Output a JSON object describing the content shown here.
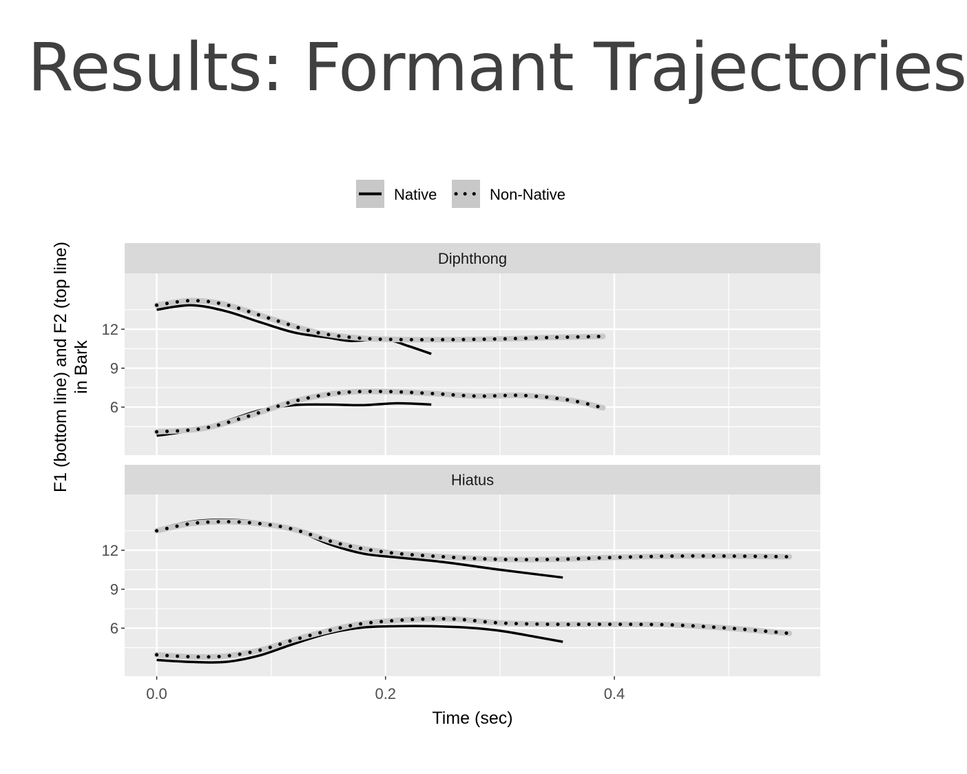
{
  "slide": {
    "title": "Results: Formant Trajectories"
  },
  "legend": [
    {
      "label": "Native",
      "style": "solid"
    },
    {
      "label": "Non-Native",
      "style": "dotted"
    }
  ],
  "chart_data": {
    "type": "line",
    "xlabel": "Time (sec)",
    "ylabel_lines": [
      "F1 (bottom line) and F2 (top line)",
      "in Bark"
    ],
    "xlim": [
      -0.028,
      0.58
    ],
    "ylim": [
      2.3,
      16.3
    ],
    "xticks": [
      0.0,
      0.2,
      0.4
    ],
    "xtick_labels": [
      "0.0",
      "0.2",
      "0.4"
    ],
    "yticks": [
      6,
      9,
      12
    ],
    "ytick_labels": [
      "6",
      "9",
      "12"
    ],
    "grid": true,
    "legend_position": "top",
    "colors": {
      "line": "#000000",
      "panel_bg": "#ebebeb",
      "strip_bg": "#d9d9d9",
      "grid": "#ffffff",
      "ribbon": "#c8c8c8",
      "axis_text": "#4d4d4d"
    },
    "panels": [
      {
        "name": "Diphthong",
        "series": [
          {
            "name": "Native",
            "formant": "F2",
            "style": "solid",
            "x": [
              0.0,
              0.03,
              0.06,
              0.09,
              0.12,
              0.15,
              0.17,
              0.2,
              0.22,
              0.24
            ],
            "y": [
              13.5,
              13.85,
              13.4,
              12.55,
              11.75,
              11.35,
              11.1,
              11.2,
              10.7,
              10.1
            ]
          },
          {
            "name": "Non-Native",
            "formant": "F2",
            "style": "dotted",
            "x": [
              0.0,
              0.03,
              0.06,
              0.1,
              0.14,
              0.18,
              0.22,
              0.26,
              0.3,
              0.34,
              0.39
            ],
            "y": [
              13.85,
              14.2,
              13.9,
              12.8,
              11.75,
              11.3,
              11.2,
              11.2,
              11.25,
              11.35,
              11.45
            ]
          },
          {
            "name": "Native",
            "formant": "F1",
            "style": "solid",
            "x": [
              0.0,
              0.03,
              0.06,
              0.09,
              0.12,
              0.15,
              0.18,
              0.21,
              0.24
            ],
            "y": [
              3.8,
              4.2,
              4.9,
              5.75,
              6.15,
              6.2,
              6.15,
              6.3,
              6.2
            ]
          },
          {
            "name": "Non-Native",
            "formant": "F1",
            "style": "dotted",
            "x": [
              0.0,
              0.04,
              0.08,
              0.12,
              0.16,
              0.2,
              0.24,
              0.28,
              0.32,
              0.36,
              0.39
            ],
            "y": [
              4.1,
              4.35,
              5.3,
              6.45,
              7.1,
              7.2,
              7.05,
              6.85,
              6.9,
              6.55,
              5.95
            ]
          }
        ]
      },
      {
        "name": "Hiatus",
        "series": [
          {
            "name": "Native",
            "formant": "F2",
            "style": "solid",
            "x": [
              0.0,
              0.03,
              0.06,
              0.09,
              0.12,
              0.15,
              0.18,
              0.21,
              0.25,
              0.3,
              0.355
            ],
            "y": [
              13.6,
              14.2,
              14.35,
              14.15,
              13.6,
              12.5,
              11.75,
              11.45,
              11.1,
              10.5,
              9.9
            ]
          },
          {
            "name": "Non-Native",
            "formant": "F2",
            "style": "dotted",
            "x": [
              0.0,
              0.03,
              0.06,
              0.09,
              0.12,
              0.16,
              0.2,
              0.25,
              0.3,
              0.35,
              0.4,
              0.45,
              0.5,
              0.553
            ],
            "y": [
              13.5,
              14.05,
              14.2,
              14.05,
              13.6,
              12.5,
              11.85,
              11.5,
              11.3,
              11.3,
              11.45,
              11.55,
              11.55,
              11.5
            ]
          },
          {
            "name": "Native",
            "formant": "F1",
            "style": "solid",
            "x": [
              0.0,
              0.03,
              0.06,
              0.09,
              0.12,
              0.15,
              0.18,
              0.21,
              0.24,
              0.27,
              0.3,
              0.33,
              0.355
            ],
            "y": [
              3.55,
              3.4,
              3.4,
              3.9,
              4.8,
              5.6,
              6.05,
              6.15,
              6.15,
              6.05,
              5.8,
              5.35,
              4.95
            ]
          },
          {
            "name": "Non-Native",
            "formant": "F1",
            "style": "dotted",
            "x": [
              0.0,
              0.03,
              0.06,
              0.09,
              0.12,
              0.15,
              0.18,
              0.22,
              0.26,
              0.3,
              0.35,
              0.4,
              0.45,
              0.5,
              0.553
            ],
            "y": [
              3.95,
              3.8,
              3.85,
              4.3,
              5.1,
              5.8,
              6.35,
              6.65,
              6.7,
              6.4,
              6.3,
              6.3,
              6.25,
              6.0,
              5.6
            ]
          }
        ]
      }
    ]
  }
}
